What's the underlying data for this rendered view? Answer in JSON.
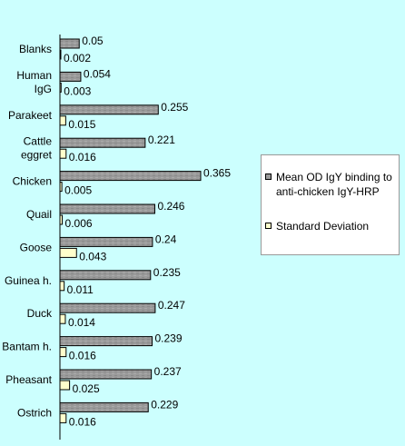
{
  "chart_data": {
    "type": "bar",
    "orientation": "horizontal",
    "categories": [
      [
        "Blanks"
      ],
      [
        "Human",
        "IgG"
      ],
      [
        "Parakeet"
      ],
      [
        "Cattle",
        "eggret"
      ],
      [
        "Chicken"
      ],
      [
        "Quail"
      ],
      [
        "Goose"
      ],
      [
        "Guinea h."
      ],
      [
        "Duck"
      ],
      [
        "Bantam h."
      ],
      [
        "Pheasant"
      ],
      [
        "Ostrich"
      ]
    ],
    "series": [
      {
        "name": "Mean OD IgY binding to anti-chicken IgY-HRP",
        "color": "#9a9a9a",
        "values": [
          0.05,
          0.054,
          0.255,
          0.221,
          0.365,
          0.246,
          0.24,
          0.235,
          0.247,
          0.239,
          0.237,
          0.229
        ],
        "labels": [
          "0.05",
          "0.054",
          "0.255",
          "0.221",
          "0.365",
          "0.246",
          "0.24",
          "0.235",
          "0.247",
          "0.239",
          "0.237",
          "0.229"
        ]
      },
      {
        "name": "Standard Deviation",
        "color": "#ffffcc",
        "values": [
          0.002,
          0.003,
          0.015,
          0.016,
          0.005,
          0.006,
          0.043,
          0.011,
          0.014,
          0.016,
          0.025,
          0.016
        ],
        "labels": [
          "0.002",
          "0.003",
          "0.015",
          "0.016",
          "0.005",
          "0.006",
          "0.043",
          "0.011",
          "0.014",
          "0.016",
          "0.025",
          "0.016"
        ]
      }
    ],
    "xlim": [
      0,
      0.4
    ],
    "legend_position": "right"
  }
}
